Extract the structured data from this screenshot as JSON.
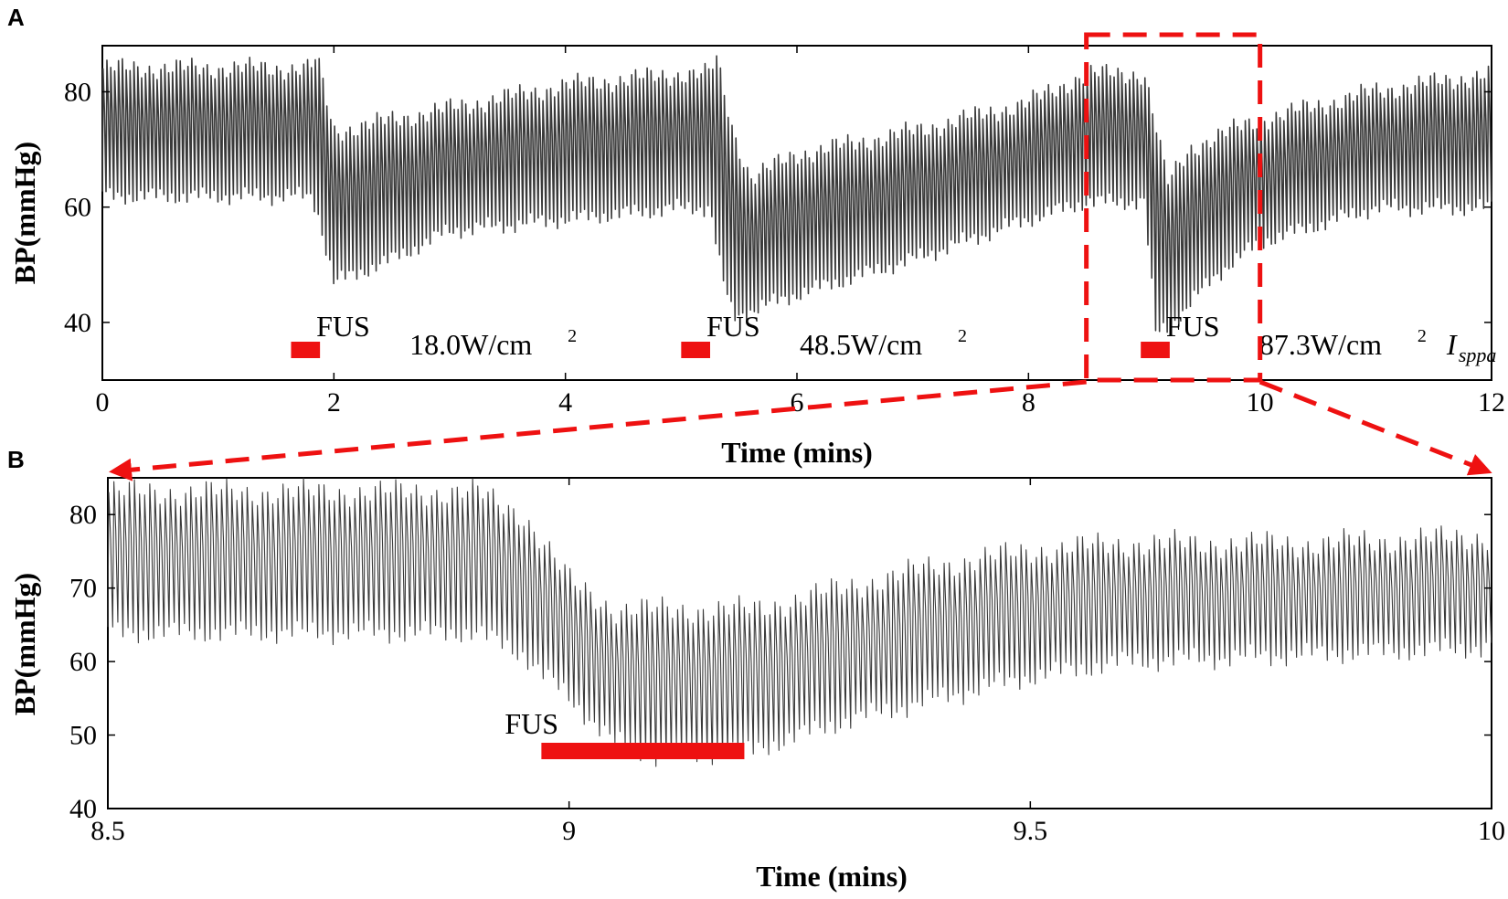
{
  "colors": {
    "trace": "#3a3a3a",
    "fus": "#ee1111",
    "zoom": "#ee1111"
  },
  "chart_data": [
    {
      "panel": "A",
      "type": "line",
      "xlabel": "Time (mins)",
      "ylabel": "BP(mmHg)",
      "xlim": [
        0,
        12
      ],
      "ylim": [
        30,
        88
      ],
      "xticks": [
        "0",
        "2",
        "4",
        "6",
        "8",
        "10",
        "12"
      ],
      "yticks": [
        "40",
        "60",
        "80"
      ],
      "series": [
        {
          "name": "Blood pressure",
          "upper_envelope": [
            [
              0,
              84
            ],
            [
              1.8,
              84
            ],
            [
              1.85,
              86
            ],
            [
              2.0,
              73
            ],
            [
              2.5,
              75
            ],
            [
              3,
              77
            ],
            [
              4,
              81
            ],
            [
              4.5,
              82
            ],
            [
              5,
              83
            ],
            [
              5.25,
              83
            ],
            [
              5.3,
              86
            ],
            [
              5.45,
              73
            ],
            [
              5.6,
              65
            ],
            [
              6,
              69
            ],
            [
              7,
              73
            ],
            [
              8,
              78
            ],
            [
              8.5,
              83
            ],
            [
              9.0,
              83
            ],
            [
              9.05,
              79
            ],
            [
              9.2,
              64
            ],
            [
              9.4,
              70
            ],
            [
              9.6,
              72
            ],
            [
              10,
              75
            ],
            [
              11,
              80
            ],
            [
              12,
              83
            ]
          ],
          "lower_envelope": [
            [
              0,
              62
            ],
            [
              1.8,
              62
            ],
            [
              1.85,
              60
            ],
            [
              2.0,
              47
            ],
            [
              2.5,
              51
            ],
            [
              3,
              56
            ],
            [
              4,
              58
            ],
            [
              4.5,
              59
            ],
            [
              5,
              60
            ],
            [
              5.25,
              60
            ],
            [
              5.35,
              48
            ],
            [
              5.45,
              41
            ],
            [
              6,
              45
            ],
            [
              7,
              51
            ],
            [
              8,
              58
            ],
            [
              8.5,
              61
            ],
            [
              9.0,
              61
            ],
            [
              9.1,
              38
            ],
            [
              9.3,
              41
            ],
            [
              9.6,
              48
            ],
            [
              10,
              54
            ],
            [
              11,
              60
            ],
            [
              12,
              60
            ]
          ]
        }
      ],
      "fus_events": [
        {
          "label": "FUS",
          "start": 1.63,
          "end": 1.88,
          "intensity": "18.0W/cm",
          "unit_sup": "2"
        },
        {
          "label": "FUS",
          "start": 5.0,
          "end": 5.25,
          "intensity": "48.5W/cm",
          "unit_sup": "2"
        },
        {
          "label": "FUS",
          "start": 8.97,
          "end": 9.22,
          "intensity": "87.3W/cm",
          "unit_sup": "2",
          "symbol": "I",
          "symbol_sub": "sppa"
        }
      ],
      "zoom_region": [
        8.5,
        10
      ]
    },
    {
      "panel": "B",
      "type": "line",
      "xlabel": "Time (mins)",
      "ylabel": "BP(mmHg)",
      "xlim": [
        8.5,
        10
      ],
      "ylim": [
        40,
        85
      ],
      "xticks": [
        "8.5",
        "9",
        "9.5",
        "10"
      ],
      "yticks": [
        "40",
        "50",
        "60",
        "70",
        "80"
      ],
      "series": [
        {
          "name": "Blood pressure",
          "upper_envelope": [
            [
              8.5,
              83
            ],
            [
              8.9,
              83
            ],
            [
              8.95,
              80
            ],
            [
              9.0,
              71
            ],
            [
              9.05,
              67
            ],
            [
              9.2,
              67
            ],
            [
              9.3,
              70
            ],
            [
              9.4,
              73
            ],
            [
              9.5,
              75
            ],
            [
              9.6,
              76
            ],
            [
              9.8,
              76
            ],
            [
              10,
              77
            ]
          ],
          "lower_envelope": [
            [
              8.5,
              64
            ],
            [
              8.9,
              64
            ],
            [
              8.95,
              61
            ],
            [
              9.0,
              55
            ],
            [
              9.05,
              49
            ],
            [
              9.1,
              47
            ],
            [
              9.2,
              48
            ],
            [
              9.3,
              52
            ],
            [
              9.4,
              55
            ],
            [
              9.5,
              58
            ],
            [
              9.6,
              60
            ],
            [
              9.8,
              61
            ],
            [
              10,
              62
            ]
          ]
        }
      ],
      "fus_events": [
        {
          "label": "FUS",
          "start": 8.97,
          "end": 9.19
        }
      ]
    }
  ]
}
